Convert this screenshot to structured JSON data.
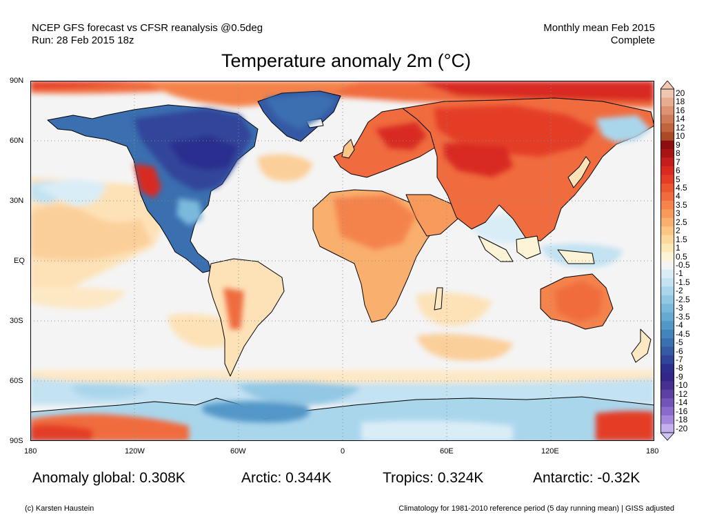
{
  "header": {
    "source": "NCEP GFS forecast vs CFSR reanalysis @0.5deg",
    "run": "Run: 28 Feb 2015 18z",
    "period": "Monthly mean Feb 2015",
    "status": "Complete"
  },
  "title": "Temperature anomaly 2m (°C)",
  "map": {
    "projection": "equirectangular",
    "lat_labels": [
      "90N",
      "60N",
      "30N",
      "EQ",
      "30S",
      "60S",
      "90S"
    ],
    "lon_labels": [
      "180",
      "120W",
      "60W",
      "0",
      "60E",
      "120E",
      "180"
    ],
    "gridlines": "dotted"
  },
  "colorbar": {
    "labels": [
      "20",
      "18",
      "16",
      "14",
      "12",
      "10",
      "9",
      "8",
      "7",
      "6",
      "5",
      "4.5",
      "4",
      "3.5",
      "3",
      "2.5",
      "2",
      "1.5",
      "1",
      "0.5",
      "-0.5",
      "-1",
      "-1.5",
      "-2",
      "-2.5",
      "-3",
      "-3.5",
      "-4",
      "-4.5",
      "-5",
      "-6",
      "-7",
      "-8",
      "-9",
      "-10",
      "-12",
      "-14",
      "-16",
      "-18",
      "-20"
    ],
    "colors": [
      "#f1c6b0",
      "#e9ac90",
      "#dd9272",
      "#cf7b58",
      "#c06440",
      "#ac4a28",
      "#8c0d0d",
      "#a81414",
      "#c51c1c",
      "#d82a20",
      "#e43c26",
      "#eb5630",
      "#f06c3e",
      "#f4834c",
      "#f79a5c",
      "#f9af6e",
      "#fbc585",
      "#fdd89d",
      "#fde8b6",
      "#fdf3d6",
      "#f4f4f4",
      "#d9edf7",
      "#c3e2f2",
      "#aad6ec",
      "#92c8e4",
      "#7ab9dc",
      "#65aad3",
      "#5298c8",
      "#4484bc",
      "#3a6fb0",
      "#3559a4",
      "#30449a",
      "#2c2f8e",
      "#322688",
      "#46308f",
      "#5c40a2",
      "#7254b8",
      "#8a6acc",
      "#a486dd",
      "#c4b0ee"
    ],
    "over_color": "#f2c8b2",
    "under_color": "#cfc4f4"
  },
  "stats": {
    "global": "Anomaly global: 0.308K",
    "arctic": "Arctic: 0.344K",
    "tropics": "Tropics: 0.324K",
    "antarctic": "Antarctic: -0.32K"
  },
  "footer": {
    "credit": "(c) Karsten Haustein",
    "note": "Climatology for 1981-2010 reference period (5 day running mean) | GISS adjusted"
  }
}
